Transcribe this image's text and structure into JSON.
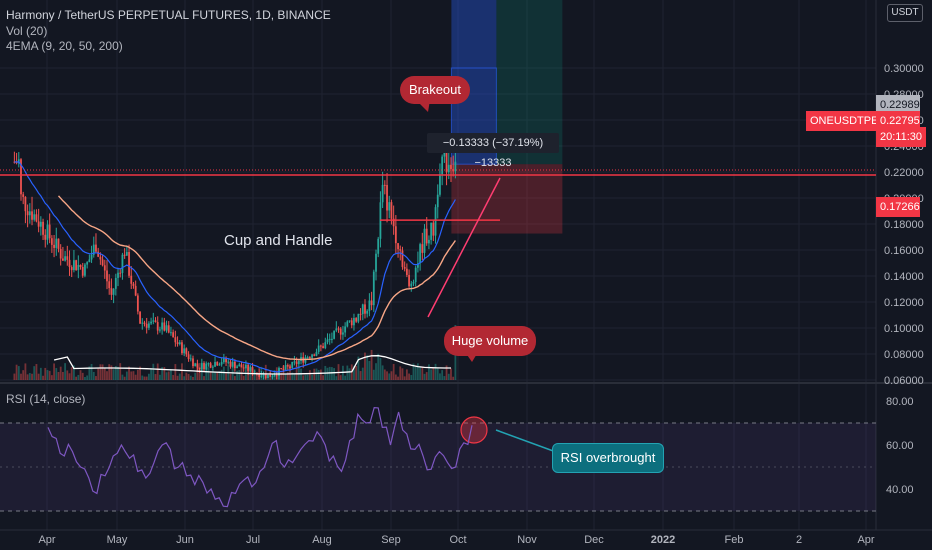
{
  "header": {
    "symbol_line": "Harmony / TetherUS PERPETUAL FUTURES, 1D, BINANCE",
    "indicator_vol": "Vol (20)",
    "indicator_ema": "4EMA (9, 20, 50, 200)",
    "rsi_label": "RSI (14, close)"
  },
  "currency_badge": "USDT",
  "annotations": {
    "brakeout": "Brakeout",
    "cup_and_handle": "Cup and Handle",
    "huge_volume": "Huge volume",
    "rsi_overbought": "RSI overbrought",
    "measure": "−0.13333 (−37.19%) −13333"
  },
  "price_tags": {
    "high_price": "0.22989",
    "symbol_tag": "ONEUSDTPERP",
    "current_price": "0.22795",
    "countdown": "20:11:30",
    "stop_price": "0.17266"
  },
  "colors": {
    "background": "#131722",
    "up": "#26a69a",
    "down": "#ef5350",
    "ema_fast": "#2962ff",
    "ema_slow": "#f7a686",
    "resistance": "#f23645",
    "rsi_line": "#7e57c2"
  },
  "chart_data": [
    {
      "type": "candlestick",
      "title": "Harmony / TetherUS PERPETUAL FUTURES, 1D, BINANCE",
      "x_ticks": [
        "Apr",
        "May",
        "Jun",
        "Jul",
        "Aug",
        "Sep",
        "Oct",
        "Nov",
        "Dec",
        "2022",
        "Feb",
        "2",
        "Apr"
      ],
      "y_ticks": [
        "0.30000",
        "0.28000",
        "0.26000",
        "0.24000",
        "0.22000",
        "0.20000",
        "0.18000",
        "0.16000",
        "0.14000",
        "0.12000",
        "0.10000",
        "0.08000",
        "0.06000"
      ],
      "ylim": [
        0.06,
        0.3
      ],
      "close_path": [
        [
          "Mar 25",
          0.11
        ],
        [
          "Apr 1",
          0.2
        ],
        [
          "Apr 10",
          0.18
        ],
        [
          "Apr 20",
          0.155
        ],
        [
          "Apr 30",
          0.145
        ],
        [
          "May 5",
          0.165
        ],
        [
          "May 12",
          0.125
        ],
        [
          "May 18",
          0.16
        ],
        [
          "May 25",
          0.105
        ],
        [
          "Jun 5",
          0.1
        ],
        [
          "Jun 20",
          0.07
        ],
        [
          "Jul 1",
          0.075
        ],
        [
          "Jul 10",
          0.07
        ],
        [
          "Jul 22",
          0.063
        ],
        [
          "Aug 1",
          0.07
        ],
        [
          "Aug 15",
          0.085
        ],
        [
          "Aug 25",
          0.1
        ],
        [
          "Sep 1",
          0.11
        ],
        [
          "Sep 7",
          0.12
        ],
        [
          "Sep 12",
          0.21
        ],
        [
          "Sep 20",
          0.16
        ],
        [
          "Sep 24",
          0.13
        ],
        [
          "Oct 1",
          0.17
        ],
        [
          "Oct 5",
          0.175
        ],
        [
          "Oct 8",
          0.22795
        ]
      ],
      "resistance_level": 0.22,
      "handle_level": 0.183,
      "indicators": [
        "Vol (20)",
        "4EMA (9, 20, 50, 200)"
      ]
    },
    {
      "type": "line",
      "title": "RSI (14, close)",
      "y_ticks": [
        "80.00",
        "60.00",
        "40.00"
      ],
      "ylim": [
        28,
        85
      ],
      "bands": [
        30,
        70
      ],
      "values": [
        68,
        63,
        55,
        57,
        50,
        45,
        38,
        46,
        55,
        60,
        54,
        48,
        45,
        52,
        60,
        58,
        50,
        46,
        42,
        43,
        40,
        36,
        32,
        38,
        44,
        41,
        48,
        55,
        62,
        50,
        52,
        58,
        62,
        66,
        60,
        55,
        48,
        62,
        74,
        70,
        77,
        68,
        60,
        75,
        65,
        58,
        55,
        49,
        57,
        52,
        50,
        61,
        69
      ]
    }
  ]
}
